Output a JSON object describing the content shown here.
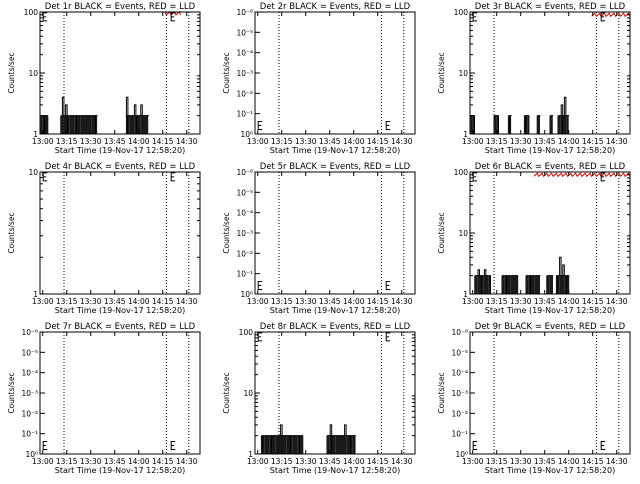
{
  "chart_data": [
    {
      "type": "line",
      "title": "Det 1r BLACK = Events, RED = LLD",
      "xlabel": "Start Time (19-Nov-17 12:58:20)",
      "ylabel": "Counts/sec",
      "y_scale": "log",
      "ylim": [
        1,
        100
      ],
      "x_ticks": [
        "13:00",
        "13:15",
        "13:30",
        "13:45",
        "14:00",
        "14:15",
        "14:30"
      ],
      "y_ticks": [
        "1",
        "10",
        "100"
      ],
      "xlim_minutes": [
        0,
        100
      ],
      "vlines_minutes": [
        15,
        79,
        93
      ],
      "series": [
        {
          "color": "#000000",
          "shape": "bursts",
          "baseline": 1,
          "level": 2,
          "segments": [
            [
              0,
              5
            ],
            [
              13,
              36
            ],
            [
              54,
              68
            ]
          ],
          "spikes": [
            [
              14,
              4
            ],
            [
              16,
              3
            ],
            [
              54,
              4
            ],
            [
              59,
              3
            ],
            [
              63,
              3
            ]
          ]
        },
        {
          "color": "#dd0000",
          "shape": "flat",
          "level": 95,
          "segments": [
            [
              78,
              88
            ]
          ]
        }
      ]
    },
    {
      "type": "line",
      "title": "Det 2r BLACK = Events, RED = LLD",
      "xlabel": "Start Time (19-Nov-17 12:58:20)",
      "ylabel": "Counts/sec",
      "y_scale": "log",
      "ylim": [
        1,
        1e-06
      ],
      "x_ticks": [
        "13:00",
        "13:15",
        "13:30",
        "13:45",
        "14:00",
        "14:15",
        "14:30"
      ],
      "y_ticks": [
        "10⁰",
        "10⁻¹",
        "10⁻²",
        "10⁻³",
        "10⁻⁴",
        "10⁻⁵",
        "10⁻⁶"
      ],
      "xlim_minutes": [
        0,
        100
      ],
      "vlines_minutes": [
        15,
        79,
        93
      ],
      "series": []
    },
    {
      "type": "line",
      "title": "Det 3r BLACK = Events, RED = LLD",
      "xlabel": "Start Time (19-Nov-17 12:58:20)",
      "ylabel": "Counts/sec",
      "y_scale": "log",
      "ylim": [
        1,
        100
      ],
      "x_ticks": [
        "13:00",
        "13:15",
        "13:30",
        "13:45",
        "14:00",
        "14:15",
        "14:30"
      ],
      "y_ticks": [
        "1",
        "10",
        "100"
      ],
      "xlim_minutes": [
        0,
        100
      ],
      "vlines_minutes": [
        15,
        79,
        93
      ],
      "series": [
        {
          "color": "#000000",
          "shape": "bursts",
          "baseline": 1,
          "level": 2,
          "segments": [
            [
              0,
              3
            ],
            [
              15,
              18
            ],
            [
              24,
              26
            ],
            [
              34,
              37
            ],
            [
              42,
              44
            ],
            [
              50,
              52
            ],
            [
              55,
              62
            ]
          ],
          "spikes": [
            [
              57,
              3
            ],
            [
              59,
              4
            ]
          ]
        },
        {
          "color": "#dd0000",
          "shape": "flat",
          "level": 90,
          "segments": [
            [
              76,
              100
            ]
          ]
        }
      ]
    },
    {
      "type": "line",
      "title": "Det 4r BLACK = Events, RED = LLD",
      "xlabel": "Start Time (19-Nov-17 12:58:20)",
      "ylabel": "Counts/sec",
      "y_scale": "log",
      "ylim": [
        1,
        10
      ],
      "x_ticks": [
        "13:00",
        "13:15",
        "13:30",
        "13:45",
        "14:00",
        "14:15",
        "14:30"
      ],
      "y_ticks": [
        "1",
        "10"
      ],
      "xlim_minutes": [
        0,
        100
      ],
      "vlines_minutes": [
        15,
        79,
        93
      ],
      "series": []
    },
    {
      "type": "line",
      "title": "Det 5r BLACK = Events, RED = LLD",
      "xlabel": "Start Time (19-Nov-17 12:58:20)",
      "ylabel": "Counts/sec",
      "y_scale": "log",
      "ylim": [
        1,
        1e-06
      ],
      "x_ticks": [
        "13:00",
        "13:15",
        "13:30",
        "13:45",
        "14:00",
        "14:15",
        "14:30"
      ],
      "y_ticks": [
        "10⁰",
        "10⁻¹",
        "10⁻²",
        "10⁻³",
        "10⁻⁴",
        "10⁻⁵",
        "10⁻⁶"
      ],
      "xlim_minutes": [
        0,
        100
      ],
      "vlines_minutes": [
        15,
        79,
        93
      ],
      "series": []
    },
    {
      "type": "line",
      "title": "Det 6r BLACK = Events, RED = LLD",
      "xlabel": "Start Time (19-Nov-17 12:58:20)",
      "ylabel": "Counts/sec",
      "y_scale": "log",
      "ylim": [
        1,
        100
      ],
      "x_ticks": [
        "13:00",
        "13:15",
        "13:30",
        "13:45",
        "14:00",
        "14:15",
        "14:30"
      ],
      "y_ticks": [
        "1",
        "10",
        "100"
      ],
      "xlim_minutes": [
        0,
        100
      ],
      "vlines_minutes": [
        15,
        79,
        93
      ],
      "series": [
        {
          "color": "#000000",
          "shape": "bursts",
          "baseline": 1,
          "level": 2,
          "segments": [
            [
              3,
              13
            ],
            [
              20,
              30
            ],
            [
              35,
              44
            ],
            [
              48,
              52
            ],
            [
              54,
              62
            ]
          ],
          "spikes": [
            [
              5,
              2.5
            ],
            [
              9,
              2.5
            ],
            [
              56,
              4
            ],
            [
              58,
              3
            ]
          ]
        },
        {
          "color": "#dd0000",
          "shape": "flat",
          "level": 90,
          "segments": [
            [
              40,
              100
            ]
          ]
        }
      ]
    },
    {
      "type": "line",
      "title": "Det 7r BLACK = Events, RED = LLD",
      "xlabel": "Start Time (19-Nov-17 12:58:20)",
      "ylabel": "Counts/sec",
      "y_scale": "log",
      "ylim": [
        1,
        1e-06
      ],
      "x_ticks": [
        "13:00",
        "13:15",
        "13:30",
        "13:45",
        "14:00",
        "14:15",
        "14:30"
      ],
      "y_ticks": [
        "10⁰",
        "10⁻¹",
        "10⁻²",
        "10⁻³",
        "10⁻⁴",
        "10⁻⁵",
        "10⁻⁶"
      ],
      "xlim_minutes": [
        0,
        100
      ],
      "vlines_minutes": [
        15,
        79,
        93
      ],
      "series": []
    },
    {
      "type": "line",
      "title": "Det 8r BLACK = Events, RED = LLD",
      "xlabel": "Start Time (19-Nov-17 12:58:20)",
      "ylabel": "Counts/sec",
      "y_scale": "log",
      "ylim": [
        1,
        100
      ],
      "x_ticks": [
        "13:00",
        "13:15",
        "13:30",
        "13:45",
        "14:00",
        "14:15",
        "14:30"
      ],
      "y_ticks": [
        "1",
        "10",
        "100"
      ],
      "xlim_minutes": [
        0,
        100
      ],
      "vlines_minutes": [
        15,
        79,
        93
      ],
      "series": [
        {
          "color": "#000000",
          "shape": "bursts",
          "baseline": 1,
          "level": 2,
          "segments": [
            [
              4,
              30
            ],
            [
              45,
              63
            ]
          ],
          "spikes": [
            [
              16,
              3
            ],
            [
              47,
              3
            ],
            [
              56,
              3
            ]
          ]
        }
      ]
    },
    {
      "type": "line",
      "title": "Det 9r BLACK = Events, RED = LLD",
      "xlabel": "Start Time (19-Nov-17 12:58:20)",
      "ylabel": "Counts/sec",
      "y_scale": "log",
      "ylim": [
        1,
        1e-06
      ],
      "x_ticks": [
        "13:00",
        "13:15",
        "13:30",
        "13:45",
        "14:00",
        "14:15",
        "14:30"
      ],
      "y_ticks": [
        "10⁰",
        "10⁻¹",
        "10⁻²",
        "10⁻³",
        "10⁻⁴",
        "10⁻⁵",
        "10⁻⁶"
      ],
      "xlim_minutes": [
        0,
        100
      ],
      "vlines_minutes": [
        15,
        79,
        93
      ],
      "series": []
    }
  ]
}
